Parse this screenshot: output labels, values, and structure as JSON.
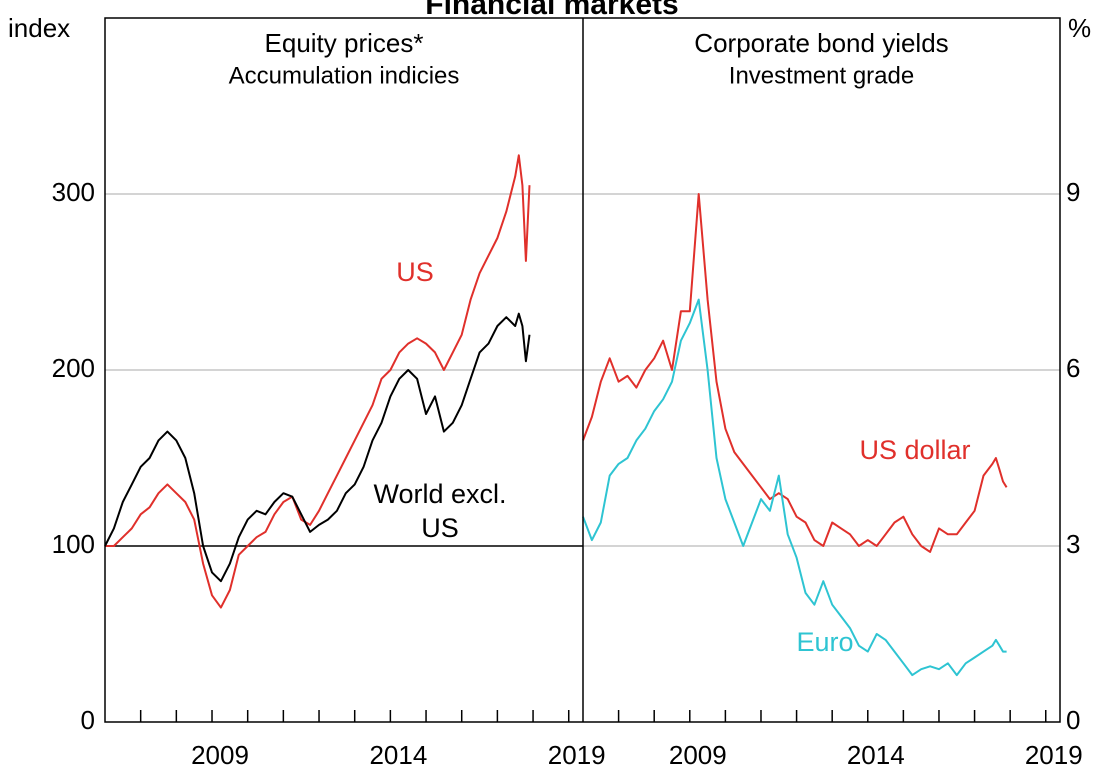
{
  "title": "Financial markets",
  "chart_data": [
    {
      "type": "line",
      "title": "Equity prices*",
      "subtitle": "Accumulation indicies",
      "ylabel": "index",
      "xlim": [
        2006,
        2019.4
      ],
      "xticks": [
        2007,
        2008,
        2009,
        2010,
        2011,
        2012,
        2013,
        2014,
        2015,
        2016,
        2017,
        2018,
        2019
      ],
      "xticklabels": [
        2009,
        2014,
        2019
      ],
      "ylim": [
        0,
        400
      ],
      "yticks": [
        0,
        100,
        200,
        300
      ],
      "grid": true,
      "baseline": 100,
      "axis_side": "left",
      "x": [
        2006,
        2006.25,
        2006.5,
        2006.75,
        2007,
        2007.25,
        2007.5,
        2007.75,
        2008,
        2008.25,
        2008.5,
        2008.75,
        2009,
        2009.25,
        2009.5,
        2009.75,
        2010,
        2010.25,
        2010.5,
        2010.75,
        2011,
        2011.25,
        2011.5,
        2011.75,
        2012,
        2012.25,
        2012.5,
        2012.75,
        2013,
        2013.25,
        2013.5,
        2013.75,
        2014,
        2014.25,
        2014.5,
        2014.75,
        2015,
        2015.25,
        2015.5,
        2015.75,
        2016,
        2016.25,
        2016.5,
        2016.75,
        2017,
        2017.25,
        2017.5,
        2017.6,
        2017.7,
        2017.8,
        2017.9
      ],
      "series": [
        {
          "name": "US",
          "color": "#e0302b",
          "values": [
            100,
            100,
            105,
            110,
            118,
            122,
            130,
            135,
            130,
            125,
            115,
            90,
            72,
            65,
            75,
            95,
            100,
            105,
            108,
            118,
            125,
            128,
            115,
            112,
            120,
            130,
            140,
            150,
            160,
            170,
            180,
            195,
            200,
            210,
            215,
            218,
            215,
            210,
            200,
            210,
            220,
            240,
            255,
            265,
            275,
            290,
            310,
            322,
            305,
            262,
            305
          ]
        },
        {
          "name": "World excl. US",
          "color": "#000000",
          "values": [
            100,
            110,
            125,
            135,
            145,
            150,
            160,
            165,
            160,
            150,
            130,
            100,
            85,
            80,
            90,
            105,
            115,
            120,
            118,
            125,
            130,
            128,
            118,
            108,
            112,
            115,
            120,
            130,
            135,
            145,
            160,
            170,
            185,
            195,
            200,
            195,
            175,
            185,
            165,
            170,
            180,
            195,
            210,
            215,
            225,
            230,
            225,
            232,
            225,
            205,
            220
          ]
        }
      ]
    },
    {
      "type": "line",
      "title": "Corporate bond yields",
      "subtitle": "Investment grade",
      "ylabel": "%",
      "xlim": [
        2006,
        2019.4
      ],
      "xticks": [
        2007,
        2008,
        2009,
        2010,
        2011,
        2012,
        2013,
        2014,
        2015,
        2016,
        2017,
        2018,
        2019
      ],
      "xticklabels": [
        2009,
        2014,
        2019
      ],
      "ylim": [
        0,
        12
      ],
      "yticks": [
        0,
        3,
        6,
        9
      ],
      "grid": true,
      "axis_side": "right",
      "x": [
        2006,
        2006.25,
        2006.5,
        2006.75,
        2007,
        2007.25,
        2007.5,
        2007.75,
        2008,
        2008.25,
        2008.5,
        2008.75,
        2009,
        2009.25,
        2009.5,
        2009.75,
        2010,
        2010.25,
        2010.5,
        2010.75,
        2011,
        2011.25,
        2011.5,
        2011.75,
        2012,
        2012.25,
        2012.5,
        2012.75,
        2013,
        2013.25,
        2013.5,
        2013.75,
        2014,
        2014.25,
        2014.5,
        2014.75,
        2015,
        2015.25,
        2015.5,
        2015.75,
        2016,
        2016.25,
        2016.5,
        2016.75,
        2017,
        2017.25,
        2017.5,
        2017.6,
        2017.7,
        2017.8,
        2017.9
      ],
      "series": [
        {
          "name": "US dollar",
          "color": "#e0302b",
          "values": [
            4.8,
            5.2,
            5.8,
            6.2,
            5.8,
            5.9,
            5.7,
            6.0,
            6.2,
            6.5,
            6.0,
            7.0,
            7.0,
            9.0,
            7.2,
            5.8,
            5.0,
            4.6,
            4.4,
            4.2,
            4.0,
            3.8,
            3.9,
            3.8,
            3.5,
            3.4,
            3.1,
            3.0,
            3.4,
            3.3,
            3.2,
            3.0,
            3.1,
            3.0,
            3.2,
            3.4,
            3.5,
            3.2,
            3.0,
            2.9,
            3.3,
            3.2,
            3.2,
            3.4,
            3.6,
            4.2,
            4.4,
            4.5,
            4.3,
            4.1,
            4.0
          ]
        },
        {
          "name": "Euro",
          "color": "#2ec4d2",
          "values": [
            3.5,
            3.1,
            3.4,
            4.2,
            4.4,
            4.5,
            4.8,
            5.0,
            5.3,
            5.5,
            5.8,
            6.5,
            6.8,
            7.2,
            6.0,
            4.5,
            3.8,
            3.4,
            3.0,
            3.4,
            3.8,
            3.6,
            4.2,
            3.2,
            2.8,
            2.2,
            2.0,
            2.4,
            2.0,
            1.8,
            1.6,
            1.3,
            1.2,
            1.5,
            1.4,
            1.2,
            1.0,
            0.8,
            0.9,
            0.95,
            0.9,
            1.0,
            0.8,
            1.0,
            1.1,
            1.2,
            1.3,
            1.4,
            1.3,
            1.2,
            1.2
          ]
        }
      ]
    }
  ]
}
